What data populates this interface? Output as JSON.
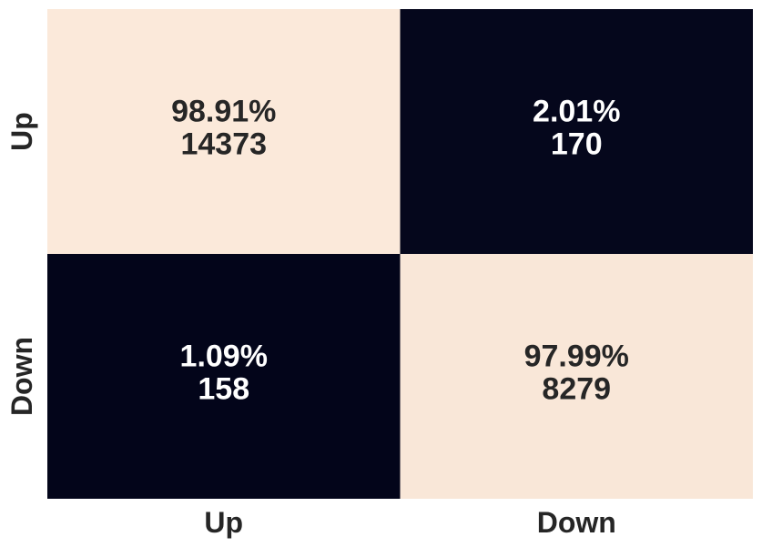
{
  "chart_data": {
    "type": "heatmap",
    "title": "",
    "xlabel": "",
    "ylabel": "",
    "x_categories": [
      "Up",
      "Down"
    ],
    "y_categories": [
      "Up",
      "Down"
    ],
    "cells": [
      [
        {
          "percent": "98.91%",
          "count": "14373",
          "value": 98.91
        },
        {
          "percent": "2.01%",
          "count": "170",
          "value": 2.01
        }
      ],
      [
        {
          "percent": "1.09%",
          "count": "158",
          "value": 1.09
        },
        {
          "percent": "97.99%",
          "count": "8279",
          "value": 97.99
        }
      ]
    ],
    "colorbar": false,
    "colors": {
      "high": "#fbe9da",
      "low": "#03051a",
      "text_on_high": "#262626",
      "text_on_low": "#ffffff"
    }
  }
}
